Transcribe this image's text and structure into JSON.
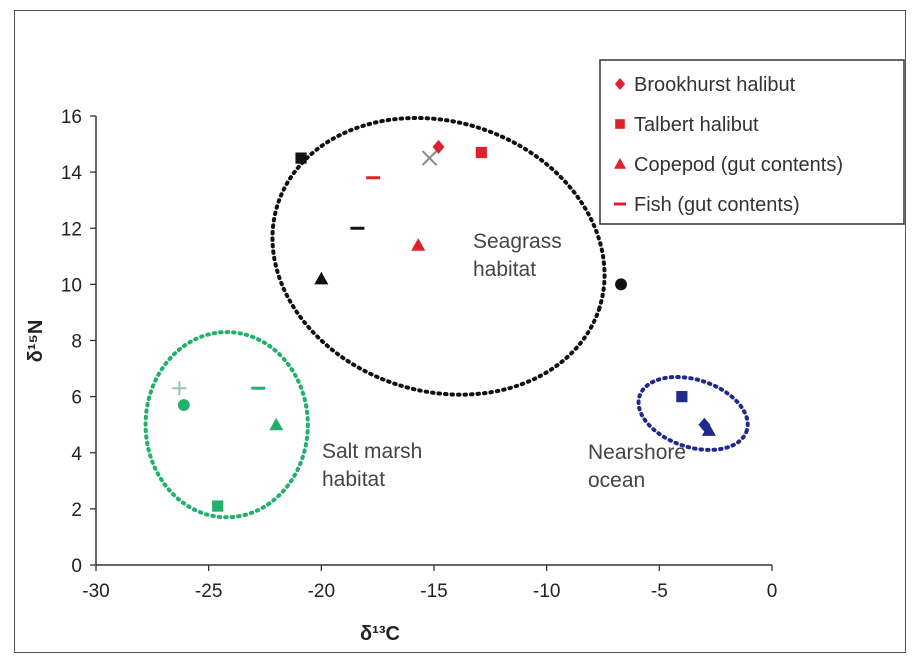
{
  "chart_data": {
    "type": "scatter",
    "xlabel": "δ¹³C",
    "ylabel": "δ¹⁵N",
    "xlim": [
      -30,
      0
    ],
    "ylim": [
      0,
      16
    ],
    "x_ticks": [
      -30,
      -25,
      -20,
      -15,
      -10,
      -5,
      0
    ],
    "y_ticks": [
      0,
      2,
      4,
      6,
      8,
      10,
      12,
      14,
      16
    ],
    "grid": false,
    "legend_position": "top-right",
    "legend": [
      {
        "label": "Brookhurst halibut",
        "marker": "diamond",
        "color": "#e0202a"
      },
      {
        "label": "Talbert halibut",
        "marker": "square",
        "color": "#e0202a"
      },
      {
        "label": "Copepod (gut contents)",
        "marker": "triangle",
        "color": "#e0202a"
      },
      {
        "label": "Fish (gut contents)",
        "marker": "dash",
        "color": "#e0202a"
      }
    ],
    "points": [
      {
        "x": -14.8,
        "y": 14.9,
        "marker": "diamond",
        "color": "#e0202a"
      },
      {
        "x": -12.9,
        "y": 14.7,
        "marker": "square",
        "color": "#e0202a"
      },
      {
        "x": -15.7,
        "y": 11.4,
        "marker": "triangle",
        "color": "#e0202a"
      },
      {
        "x": -17.7,
        "y": 13.8,
        "marker": "dash",
        "color": "#e0202a"
      },
      {
        "x": -20.9,
        "y": 14.5,
        "marker": "square",
        "color": "#111111"
      },
      {
        "x": -15.2,
        "y": 14.5,
        "marker": "x",
        "color": "#888888"
      },
      {
        "x": -18.4,
        "y": 12.0,
        "marker": "dash",
        "color": "#111111"
      },
      {
        "x": -20.0,
        "y": 10.2,
        "marker": "triangle",
        "color": "#111111"
      },
      {
        "x": -6.7,
        "y": 10.0,
        "marker": "circle",
        "color": "#111111"
      },
      {
        "x": -26.3,
        "y": 6.3,
        "marker": "plus",
        "color": "#8fc9a8"
      },
      {
        "x": -26.1,
        "y": 5.7,
        "marker": "circle",
        "color": "#22b06a"
      },
      {
        "x": -22.8,
        "y": 6.3,
        "marker": "dash",
        "color": "#22b06a"
      },
      {
        "x": -22.0,
        "y": 5.0,
        "marker": "triangle",
        "color": "#22b06a"
      },
      {
        "x": -24.6,
        "y": 2.1,
        "marker": "square",
        "color": "#22b06a"
      },
      {
        "x": -4.0,
        "y": 6.0,
        "marker": "square",
        "color": "#1f2a8a"
      },
      {
        "x": -3.0,
        "y": 5.0,
        "marker": "diamond",
        "color": "#1f2a8a"
      },
      {
        "x": -2.8,
        "y": 4.8,
        "marker": "triangle",
        "color": "#1f2a8a"
      }
    ],
    "regions": [
      {
        "label": "Seagrass habitat",
        "lines": [
          "Seagrass",
          "habitat"
        ],
        "color": "#111111",
        "cx": -14.8,
        "cy": 11.0,
        "rx": 7.5,
        "ry": 4.8,
        "angle": 18
      },
      {
        "label": "Salt marsh habitat",
        "lines": [
          "Salt marsh",
          "habitat"
        ],
        "color": "#22b06a",
        "cx": -24.2,
        "cy": 5.0,
        "rx": 3.6,
        "ry": 3.3,
        "angle": 0
      },
      {
        "label": "Nearshore ocean",
        "lines": [
          "Nearshore",
          "ocean"
        ],
        "color": "#1f2a8a",
        "cx": -3.5,
        "cy": 5.4,
        "rx": 2.5,
        "ry": 1.2,
        "angle": 18
      }
    ]
  }
}
